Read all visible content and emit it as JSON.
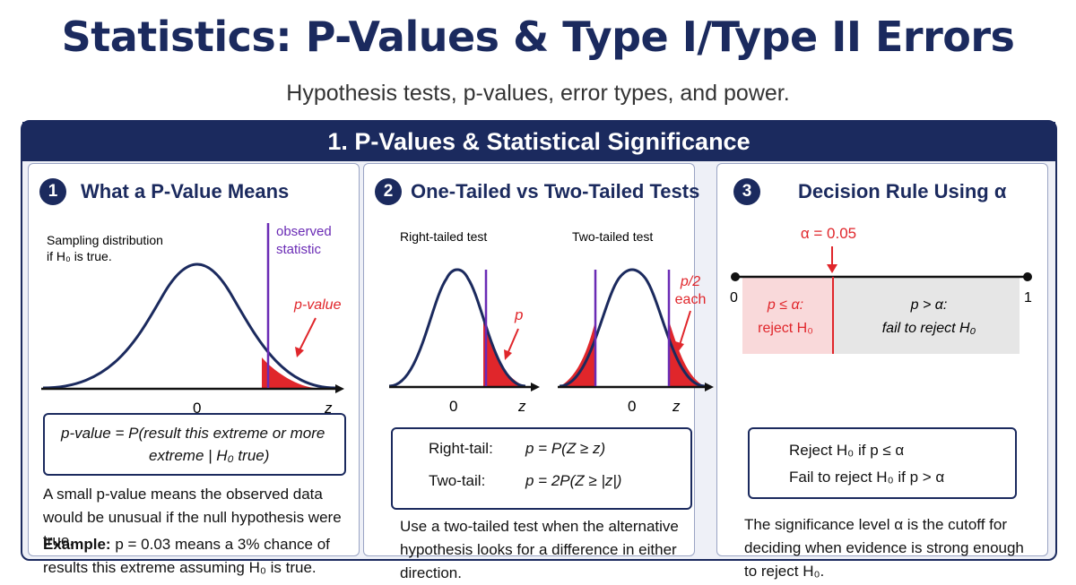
{
  "title": "Statistics: P-Values & Type I/Type II Errors",
  "subtitle": "Hypothesis tests, p-values, error types, and power.",
  "section": {
    "title": "1. P-Values & Statistical Significance"
  },
  "panel1": {
    "number": "1",
    "title": "What a P-Value Means",
    "sampling_label_1": "Sampling distribution",
    "sampling_label_2": "if H₀ is true.",
    "observed_label_1": "observed",
    "observed_label_2": "statistic",
    "pvalue_label": "p-value",
    "axis_zero": "0",
    "axis_z": "z",
    "formula_line1": "p-value = P(result this extreme or more",
    "formula_line2": "extreme | H₀ true)",
    "explanation": "A small p-value means the observed data would be unusual if the null hypothesis were true.",
    "example_label": "Example:",
    "example_text": "p = 0.03 means a 3% chance of results this extreme assuming H₀ is true."
  },
  "panel2": {
    "number": "2",
    "title": "One-Tailed vs Two-Tailed Tests",
    "right_tailed_label": "Right-tailed test",
    "two_tailed_label": "Two-tailed test",
    "p_label": "p",
    "p2_label_1": "p/2",
    "p2_label_2": "each",
    "axis_zero": "0",
    "axis_z": "z",
    "right_tail_name": "Right-tail:",
    "right_tail_formula": "p = P(Z ≥ z)",
    "two_tail_name": "Two-tail:",
    "two_tail_formula": "p = 2P(Z ≥ |z|)",
    "explanation": "Use a two-tailed test when the alternative hypothesis looks for a difference in either direction."
  },
  "panel3": {
    "number": "3",
    "title": "Decision Rule Using α",
    "alpha_label": "α = 0.05",
    "scale_min": "0",
    "scale_max": "1",
    "alpha_value": 0.05,
    "reject_region_1": "p ≤ α:",
    "reject_region_2": "reject H₀",
    "fail_region_1": "p > α:",
    "fail_region_2": "fail to reject H₀",
    "rule_line1": "Reject H₀ if  p ≤ α",
    "rule_line2": "Fail to reject H₀ if  p > α",
    "explanation": "The significance level α is the cutoff for deciding when evidence is strong enough to reject H₀."
  },
  "colors": {
    "navy": "#1b2a5e",
    "red": "#e0262b",
    "purple": "#6a2bb5",
    "reject_fill": "#f9d9da",
    "fail_fill": "#e6e6e6"
  }
}
